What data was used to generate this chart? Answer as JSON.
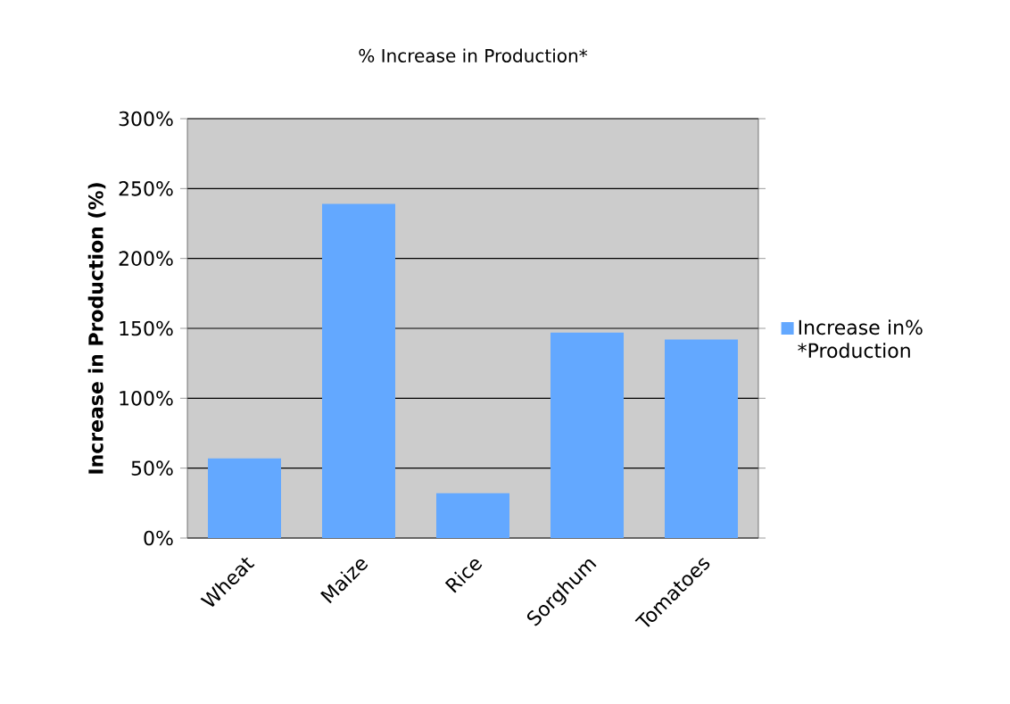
{
  "chart_data": {
    "type": "bar",
    "title": "% Increase in Production*",
    "ylabel": "Increase in Production (%)",
    "categories": [
      "Wheat",
      "Maize",
      "Rice",
      "Sorghum",
      "Tomatoes"
    ],
    "series": [
      {
        "name": "Increase in% *Production",
        "color": "#63a8ff",
        "values": [
          57,
          239,
          32,
          147,
          142
        ]
      }
    ],
    "ylim": [
      0,
      300
    ],
    "yticks": [
      {
        "value": 0,
        "label": "0%"
      },
      {
        "value": 50,
        "label": "50%"
      },
      {
        "value": 100,
        "label": "100%"
      },
      {
        "value": 150,
        "label": "150%"
      },
      {
        "value": 200,
        "label": "200%"
      },
      {
        "value": 250,
        "label": "250%"
      },
      {
        "value": 300,
        "label": "300%"
      }
    ],
    "grid": "y",
    "legend": "right"
  }
}
